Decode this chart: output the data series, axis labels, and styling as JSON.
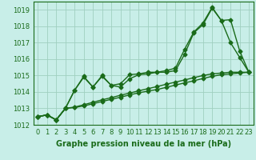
{
  "x": [
    0,
    1,
    2,
    3,
    4,
    5,
    6,
    7,
    8,
    9,
    10,
    11,
    12,
    13,
    14,
    15,
    16,
    17,
    18,
    19,
    20,
    21,
    22,
    23
  ],
  "series1": [
    1012.5,
    1012.6,
    1012.3,
    1013.0,
    1014.1,
    1014.9,
    1014.3,
    1015.0,
    1014.4,
    1014.3,
    1014.8,
    1015.05,
    1015.1,
    1015.2,
    1015.2,
    1015.3,
    1016.3,
    1017.6,
    1018.1,
    1019.1,
    1018.35,
    1017.0,
    1016.1,
    1015.2
  ],
  "series2": [
    1012.5,
    1012.6,
    1012.3,
    1013.0,
    1014.1,
    1014.95,
    1014.3,
    1014.95,
    1014.4,
    1014.5,
    1015.05,
    1015.1,
    1015.2,
    1015.2,
    1015.3,
    1015.45,
    1016.6,
    1017.65,
    1018.2,
    1019.15,
    1018.35,
    1018.4,
    1016.5,
    1015.2
  ],
  "series3": [
    1012.5,
    1012.6,
    1012.3,
    1013.0,
    1013.05,
    1013.15,
    1013.28,
    1013.42,
    1013.55,
    1013.68,
    1013.82,
    1013.95,
    1014.05,
    1014.15,
    1014.28,
    1014.42,
    1014.55,
    1014.68,
    1014.82,
    1014.95,
    1015.05,
    1015.1,
    1015.15,
    1015.2
  ],
  "series4": [
    1012.5,
    1012.6,
    1012.3,
    1013.0,
    1013.08,
    1013.22,
    1013.37,
    1013.52,
    1013.65,
    1013.8,
    1013.93,
    1014.07,
    1014.2,
    1014.33,
    1014.47,
    1014.6,
    1014.73,
    1014.87,
    1015.0,
    1015.1,
    1015.15,
    1015.2,
    1015.2,
    1015.2
  ],
  "line_color": "#1a6b1a",
  "bg_color": "#c8eee8",
  "grid_color": "#a0cfc0",
  "xlabel": "Graphe pression niveau de la mer (hPa)",
  "ylim": [
    1012,
    1019.5
  ],
  "yticks": [
    1012,
    1013,
    1014,
    1015,
    1016,
    1017,
    1018,
    1019
  ],
  "xticks": [
    0,
    1,
    2,
    3,
    4,
    5,
    6,
    7,
    8,
    9,
    10,
    11,
    12,
    13,
    14,
    15,
    16,
    17,
    18,
    19,
    20,
    21,
    22,
    23
  ],
  "marker": "D",
  "markersize": 2.5,
  "linewidth": 1.0,
  "xlabel_fontsize": 7,
  "tick_fontsize": 6
}
